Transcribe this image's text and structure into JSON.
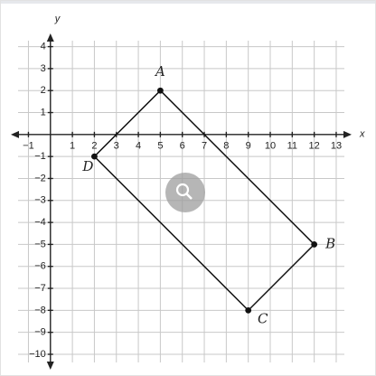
{
  "chart_data": {
    "type": "line",
    "x": [
      5,
      12,
      9,
      2
    ],
    "values": [
      2,
      -5,
      -8,
      -1
    ],
    "point_labels": [
      "A",
      "B",
      "C",
      "D"
    ],
    "color": "#111111",
    "x_label": "x",
    "y_label": "y",
    "xlim": [
      -1.8,
      13.7
    ],
    "ylim": [
      -10.7,
      4.6
    ],
    "xticks": [
      {
        "value": -1,
        "label": "−1"
      },
      1,
      2,
      3,
      4,
      5,
      6,
      7,
      8,
      9,
      10,
      11,
      12,
      13
    ],
    "yticks": [
      4,
      3,
      2,
      1,
      {
        "value": -1,
        "label": "−1"
      },
      {
        "value": -2,
        "label": "−2"
      },
      {
        "value": -3,
        "label": "−3"
      },
      {
        "value": -4,
        "label": "−4"
      },
      {
        "value": -5,
        "label": "−5"
      },
      {
        "value": -6,
        "label": "−6"
      },
      {
        "value": -7,
        "label": "−7"
      },
      {
        "value": -8,
        "label": "−8"
      },
      {
        "value": -9,
        "label": "−9"
      },
      {
        "value": -10,
        "label": "−10"
      }
    ],
    "grid": true
  }
}
